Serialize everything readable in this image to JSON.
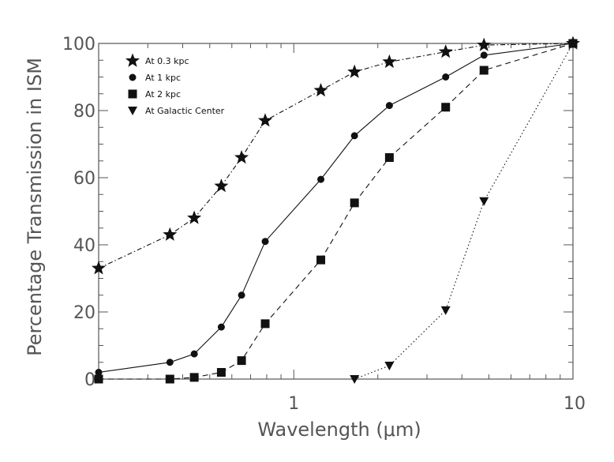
{
  "chart_data": {
    "type": "line",
    "xlabel": "Wavelength (μm)",
    "ylabel": "Percentage Transmission in ISM",
    "xscale": "log",
    "xlim": [
      0.2,
      10
    ],
    "ylim": [
      0,
      100
    ],
    "xticks": [
      {
        "value": 1,
        "label": "1"
      },
      {
        "value": 10,
        "label": "10"
      }
    ],
    "yticks": [
      {
        "value": 0,
        "label": "0"
      },
      {
        "value": 20,
        "label": "20"
      },
      {
        "value": 40,
        "label": "40"
      },
      {
        "value": 60,
        "label": "60"
      },
      {
        "value": 80,
        "label": "80"
      },
      {
        "value": 100,
        "label": "100"
      }
    ],
    "grid": false,
    "legend_placement": "top-left",
    "series": [
      {
        "name": "At 0.3 kpc",
        "marker": "star",
        "linestyle": "dashdot",
        "x": [
          0.2,
          0.36,
          0.44,
          0.55,
          0.65,
          0.79,
          1.25,
          1.65,
          2.2,
          3.5,
          4.8,
          10
        ],
        "y": [
          33,
          43,
          48,
          57.5,
          66,
          77,
          86,
          91.5,
          94.5,
          97.5,
          99.5,
          100
        ]
      },
      {
        "name": "At 1 kpc",
        "marker": "circle",
        "linestyle": "solid",
        "x": [
          0.2,
          0.36,
          0.44,
          0.55,
          0.65,
          0.79,
          1.25,
          1.65,
          2.2,
          3.5,
          4.8,
          10
        ],
        "y": [
          2,
          5,
          7.5,
          15.5,
          25,
          41,
          59.5,
          72.5,
          81.5,
          90,
          96.5,
          100
        ]
      },
      {
        "name": "At 2 kpc",
        "marker": "square",
        "linestyle": "dashed",
        "x": [
          0.2,
          0.36,
          0.44,
          0.55,
          0.65,
          0.79,
          1.25,
          1.65,
          2.2,
          3.5,
          4.8,
          10
        ],
        "y": [
          0,
          0,
          0.5,
          2,
          5.5,
          16.5,
          35.5,
          52.5,
          66,
          81,
          92,
          100
        ]
      },
      {
        "name": "At Galactic Center",
        "marker": "triangle-down",
        "linestyle": "dotted",
        "x": [
          1.65,
          2.2,
          3.5,
          4.8,
          10
        ],
        "y": [
          0,
          4,
          20.5,
          53,
          100
        ]
      }
    ]
  },
  "colors": {
    "axes": "#555555",
    "series": "#111111"
  }
}
